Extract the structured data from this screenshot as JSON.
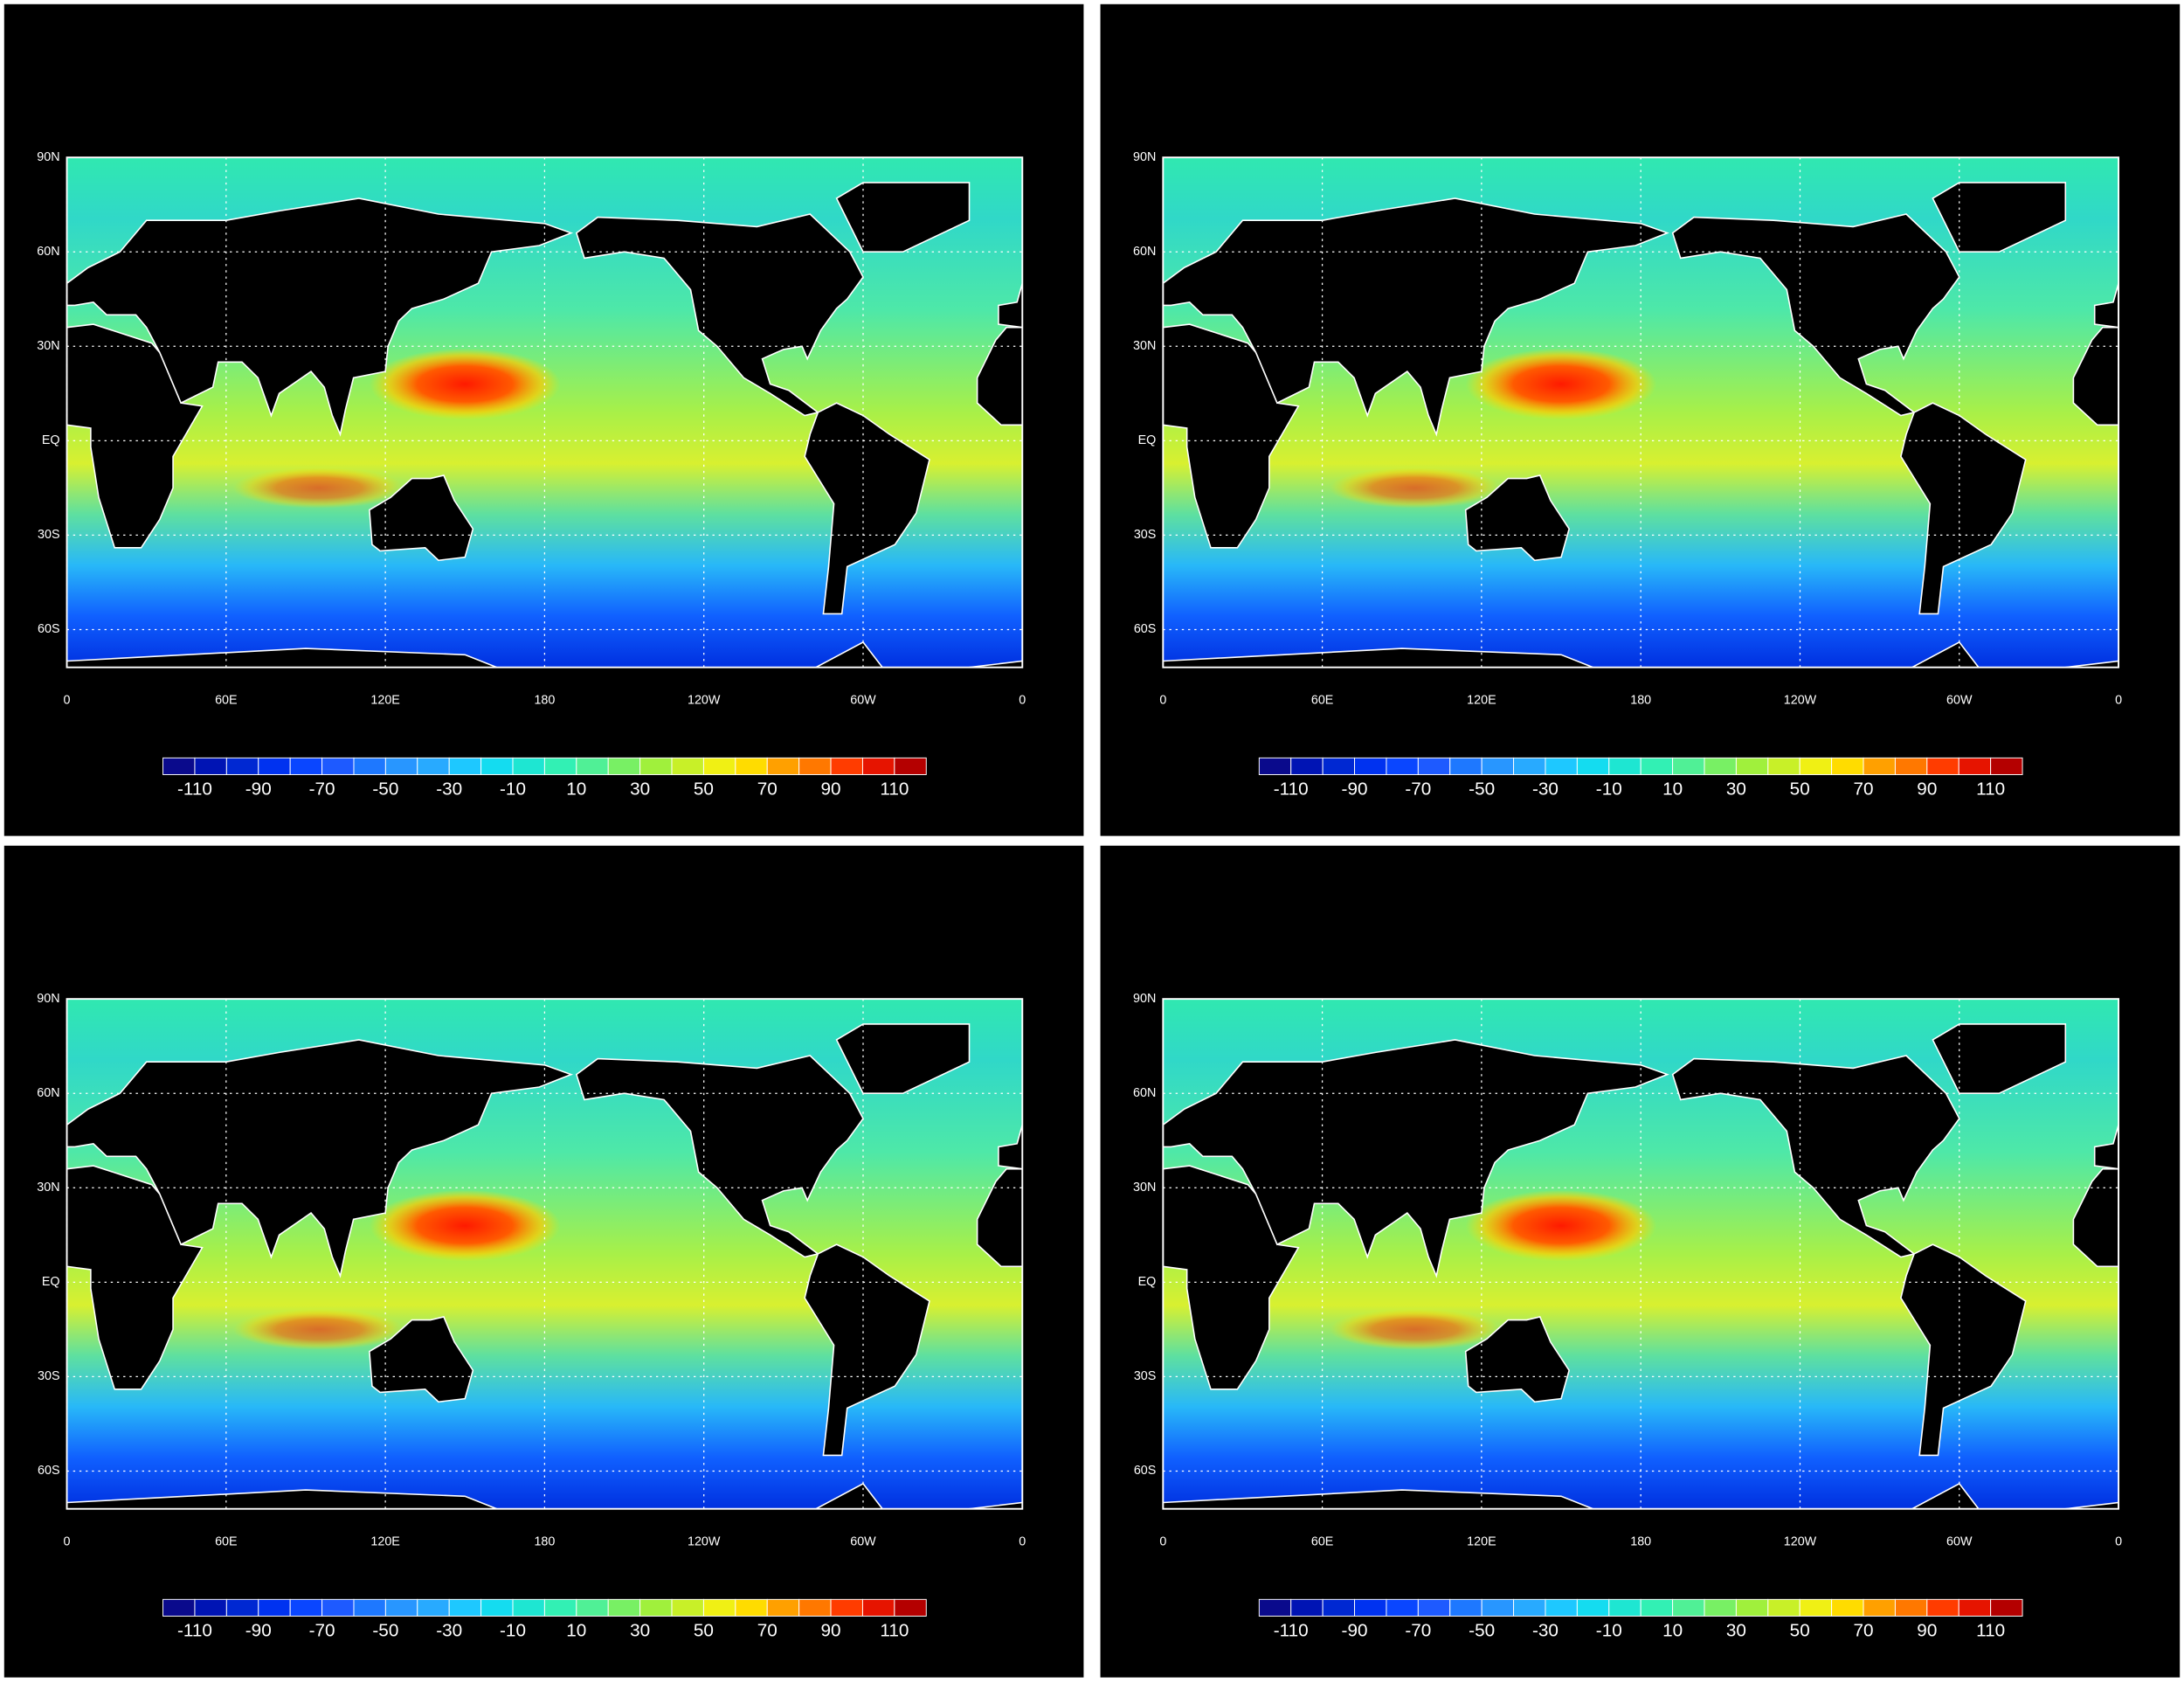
{
  "chart_data": [
    {
      "type": "map",
      "xlim": [
        0,
        360
      ],
      "ylim": [
        -72,
        90
      ],
      "xticks": [
        0,
        {
          "value": 60,
          "label": "60E"
        },
        {
          "value": 120,
          "label": "120E"
        },
        180,
        {
          "value": 240,
          "label": "120W"
        },
        {
          "value": 300,
          "label": "60W"
        },
        {
          "value": 360,
          "label": "0"
        }
      ],
      "yticks": [
        {
          "value": 90,
          "label": "90N"
        },
        {
          "value": 60,
          "label": "60N"
        },
        {
          "value": 30,
          "label": "30N"
        },
        {
          "value": 0,
          "label": "EQ"
        },
        {
          "value": -30,
          "label": "30S"
        },
        {
          "value": -60,
          "label": "60S"
        }
      ],
      "grid": true,
      "colorbar": {
        "labels": [
          -110,
          -90,
          -70,
          -50,
          -30,
          -10,
          10,
          30,
          50,
          70,
          90,
          110
        ],
        "colors": [
          "#0a0a8c",
          "#0014b4",
          "#0028d2",
          "#0032f0",
          "#0a46ff",
          "#1e5aff",
          "#1e78ff",
          "#2896ff",
          "#28aaff",
          "#1ec8ff",
          "#14dcf0",
          "#1ee6d2",
          "#32f0b4",
          "#50f096",
          "#78f064",
          "#a0f03c",
          "#c8f028",
          "#f0f014",
          "#ffdc00",
          "#ffa000",
          "#ff7800",
          "#ff3c00",
          "#e61400",
          "#b40000"
        ]
      }
    },
    {
      "type": "map",
      "xlim": [
        0,
        360
      ],
      "ylim": [
        -72,
        90
      ],
      "xticks": [
        0,
        {
          "value": 60,
          "label": "60E"
        },
        {
          "value": 120,
          "label": "120E"
        },
        180,
        {
          "value": 240,
          "label": "120W"
        },
        {
          "value": 300,
          "label": "60W"
        },
        {
          "value": 360,
          "label": "0"
        }
      ],
      "yticks": [
        {
          "value": 90,
          "label": "90N"
        },
        {
          "value": 60,
          "label": "60N"
        },
        {
          "value": 30,
          "label": "30N"
        },
        {
          "value": 0,
          "label": "EQ"
        },
        {
          "value": -30,
          "label": "30S"
        },
        {
          "value": -60,
          "label": "60S"
        }
      ],
      "grid": true,
      "colorbar": {
        "labels": [
          -110,
          -90,
          -70,
          -50,
          -30,
          -10,
          10,
          30,
          50,
          70,
          90,
          110
        ],
        "colors": [
          "#0a0a8c",
          "#0014b4",
          "#0028d2",
          "#0032f0",
          "#0a46ff",
          "#1e5aff",
          "#1e78ff",
          "#2896ff",
          "#28aaff",
          "#1ec8ff",
          "#14dcf0",
          "#1ee6d2",
          "#32f0b4",
          "#50f096",
          "#78f064",
          "#a0f03c",
          "#c8f028",
          "#f0f014",
          "#ffdc00",
          "#ffa000",
          "#ff7800",
          "#ff3c00",
          "#e61400",
          "#b40000"
        ]
      }
    },
    {
      "type": "map",
      "xlim": [
        0,
        360
      ],
      "ylim": [
        -72,
        90
      ],
      "xticks": [
        0,
        {
          "value": 60,
          "label": "60E"
        },
        {
          "value": 120,
          "label": "120E"
        },
        180,
        {
          "value": 240,
          "label": "120W"
        },
        {
          "value": 300,
          "label": "60W"
        },
        {
          "value": 360,
          "label": "0"
        }
      ],
      "yticks": [
        {
          "value": 90,
          "label": "90N"
        },
        {
          "value": 60,
          "label": "60N"
        },
        {
          "value": 30,
          "label": "30N"
        },
        {
          "value": 0,
          "label": "EQ"
        },
        {
          "value": -30,
          "label": "30S"
        },
        {
          "value": -60,
          "label": "60S"
        }
      ],
      "grid": true,
      "colorbar": {
        "labels": [
          -110,
          -90,
          -70,
          -50,
          -30,
          -10,
          10,
          30,
          50,
          70,
          90,
          110
        ],
        "colors": [
          "#0a0a8c",
          "#0014b4",
          "#0028d2",
          "#0032f0",
          "#0a46ff",
          "#1e5aff",
          "#1e78ff",
          "#2896ff",
          "#28aaff",
          "#1ec8ff",
          "#14dcf0",
          "#1ee6d2",
          "#32f0b4",
          "#50f096",
          "#78f064",
          "#a0f03c",
          "#c8f028",
          "#f0f014",
          "#ffdc00",
          "#ffa000",
          "#ff7800",
          "#ff3c00",
          "#e61400",
          "#b40000"
        ]
      }
    },
    {
      "type": "map",
      "xlim": [
        0,
        360
      ],
      "ylim": [
        -72,
        90
      ],
      "xticks": [
        0,
        {
          "value": 60,
          "label": "60E"
        },
        {
          "value": 120,
          "label": "120E"
        },
        180,
        {
          "value": 240,
          "label": "120W"
        },
        {
          "value": 300,
          "label": "60W"
        },
        {
          "value": 360,
          "label": "0"
        }
      ],
      "yticks": [
        {
          "value": 90,
          "label": "90N"
        },
        {
          "value": 60,
          "label": "60N"
        },
        {
          "value": 30,
          "label": "30N"
        },
        {
          "value": 0,
          "label": "EQ"
        },
        {
          "value": -30,
          "label": "30S"
        },
        {
          "value": -60,
          "label": "60S"
        }
      ],
      "grid": true,
      "colorbar": {
        "labels": [
          -110,
          -90,
          -70,
          -50,
          -30,
          -10,
          10,
          30,
          50,
          70,
          90,
          110
        ],
        "colors": [
          "#0a0a8c",
          "#0014b4",
          "#0028d2",
          "#0032f0",
          "#0a46ff",
          "#1e5aff",
          "#1e78ff",
          "#2896ff",
          "#28aaff",
          "#1ec8ff",
          "#14dcf0",
          "#1ee6d2",
          "#32f0b4",
          "#50f096",
          "#78f064",
          "#a0f03c",
          "#c8f028",
          "#f0f014",
          "#ffdc00",
          "#ffa000",
          "#ff7800",
          "#ff3c00",
          "#e61400",
          "#b40000"
        ]
      }
    }
  ]
}
